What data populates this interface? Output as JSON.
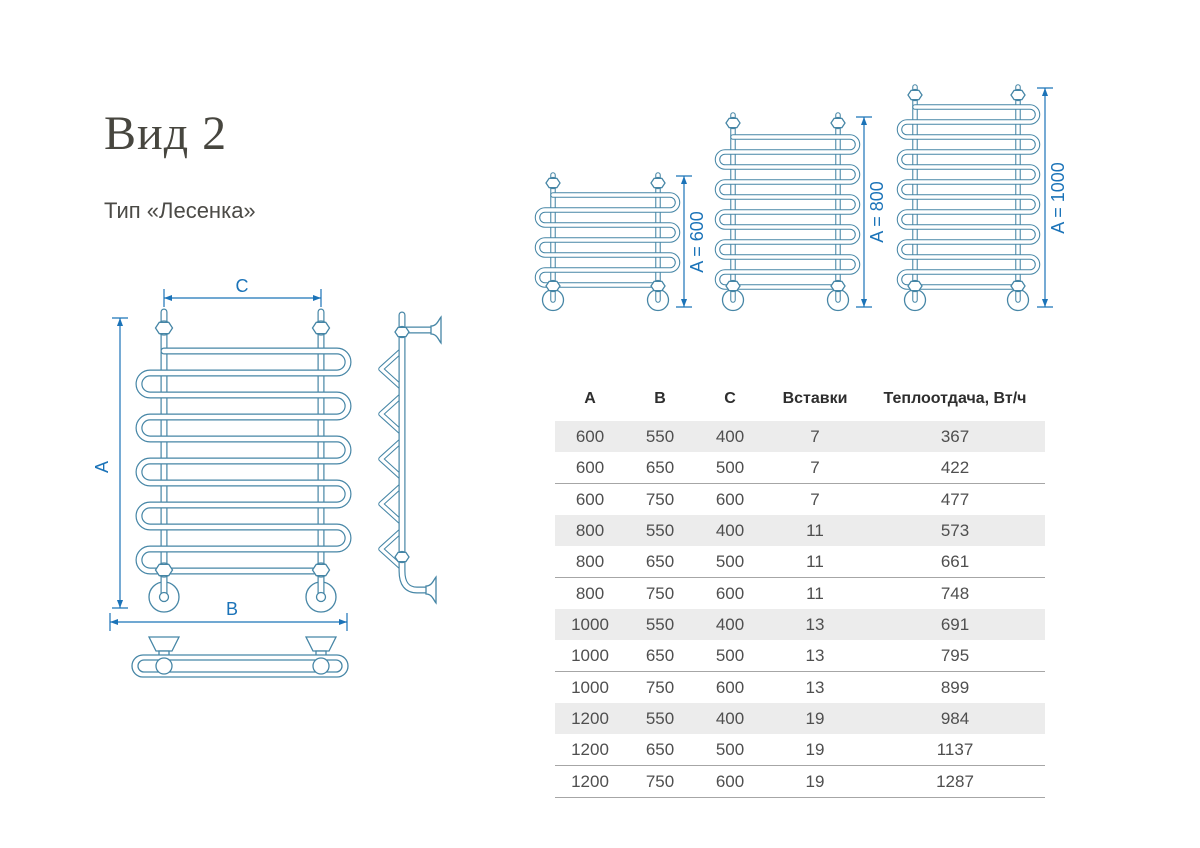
{
  "page": {
    "title": "Вид 2",
    "subtitle": "Тип «Лесенка»"
  },
  "colors": {
    "drawing": "#4686a6",
    "dimension": "#1b73b8"
  },
  "front_view": {
    "dim_top": "C",
    "dim_left": "A",
    "dim_bottom": "B"
  },
  "size_variants": [
    {
      "label": "A = 600"
    },
    {
      "label": "A = 800"
    },
    {
      "label": "A = 1000"
    }
  ],
  "table": {
    "headers": [
      "A",
      "B",
      "C",
      "Вставки",
      "Теплоотдача, Вт/ч"
    ],
    "keys": [
      "a",
      "b",
      "c",
      "inserts",
      "heat"
    ],
    "rows": [
      {
        "a": "600",
        "b": "550",
        "c": "400",
        "inserts": "7",
        "heat": "367",
        "shaded": true,
        "separator": false
      },
      {
        "a": "600",
        "b": "650",
        "c": "500",
        "inserts": "7",
        "heat": "422",
        "shaded": false,
        "separator": true
      },
      {
        "a": "600",
        "b": "750",
        "c": "600",
        "inserts": "7",
        "heat": "477",
        "shaded": false,
        "separator": false
      },
      {
        "a": "800",
        "b": "550",
        "c": "400",
        "inserts": "11",
        "heat": "573",
        "shaded": true,
        "separator": false
      },
      {
        "a": "800",
        "b": "650",
        "c": "500",
        "inserts": "11",
        "heat": "661",
        "shaded": false,
        "separator": true
      },
      {
        "a": "800",
        "b": "750",
        "c": "600",
        "inserts": "11",
        "heat": "748",
        "shaded": false,
        "separator": false
      },
      {
        "a": "1000",
        "b": "550",
        "c": "400",
        "inserts": "13",
        "heat": "691",
        "shaded": true,
        "separator": false
      },
      {
        "a": "1000",
        "b": "650",
        "c": "500",
        "inserts": "13",
        "heat": "795",
        "shaded": false,
        "separator": true
      },
      {
        "a": "1000",
        "b": "750",
        "c": "600",
        "inserts": "13",
        "heat": "899",
        "shaded": false,
        "separator": false
      },
      {
        "a": "1200",
        "b": "550",
        "c": "400",
        "inserts": "19",
        "heat": "984",
        "shaded": true,
        "separator": false
      },
      {
        "a": "1200",
        "b": "650",
        "c": "500",
        "inserts": "19",
        "heat": "1137",
        "shaded": false,
        "separator": true
      },
      {
        "a": "1200",
        "b": "750",
        "c": "600",
        "inserts": "19",
        "heat": "1287",
        "shaded": false,
        "separator": true
      }
    ]
  }
}
